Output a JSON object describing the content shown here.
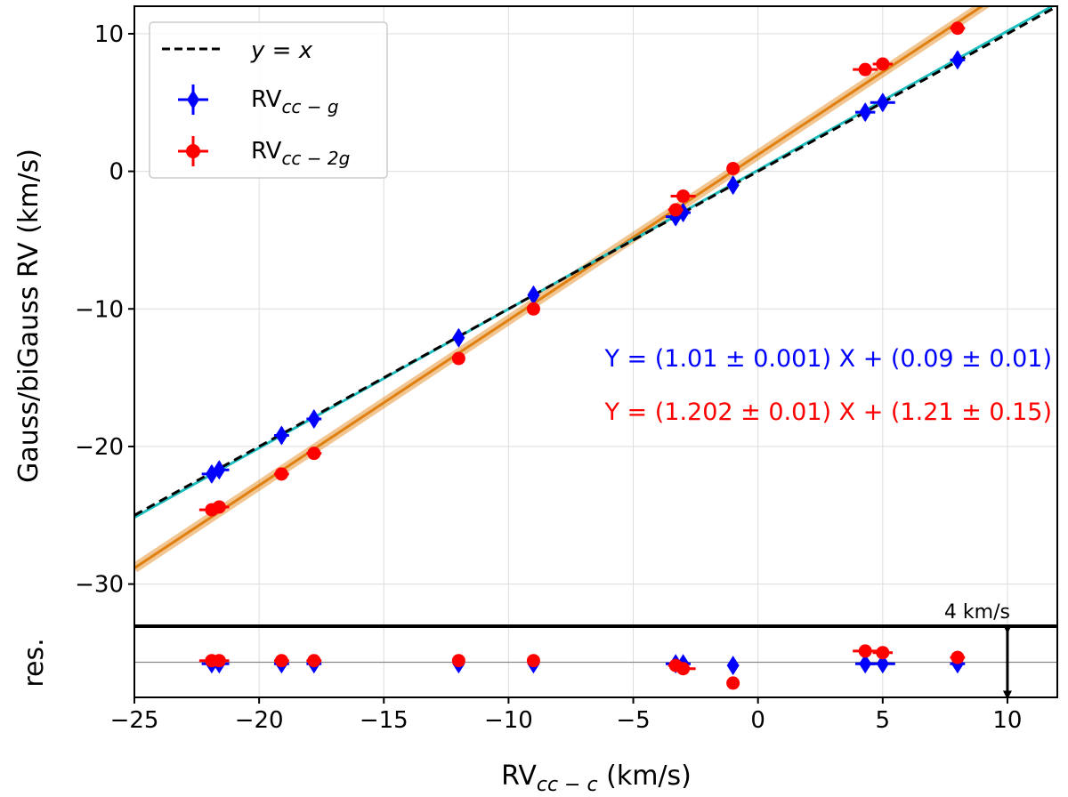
{
  "chart_data": {
    "type": "scatter",
    "xlabel_main": "RV",
    "xlabel_sub": "cc − c",
    "xlabel_unit": " (km/s)",
    "ylabel": "Gauss/biGauss RV (km/s)",
    "residual_ylabel": "res.",
    "xlim": [
      -25,
      12
    ],
    "ylim": [
      -33,
      12
    ],
    "xticks": [
      -25,
      -20,
      -15,
      -10,
      -5,
      0,
      5,
      10
    ],
    "yticks": [
      -30,
      -20,
      -10,
      0,
      10
    ],
    "xtick_labels": [
      "−25",
      "−20",
      "−15",
      "−10",
      "−5",
      "0",
      "5",
      "10"
    ],
    "ytick_labels": [
      "−30",
      "−20",
      "−10",
      "0",
      "10"
    ],
    "grid": true,
    "legend": {
      "placement": "top-left",
      "entries": [
        {
          "label": "y = x"
        },
        {
          "label_main": "RV",
          "label_sub": "cc − g"
        },
        {
          "label_main": "RV",
          "label_sub": "cc − 2g"
        }
      ]
    },
    "identity_line": {
      "color": "#000000",
      "style": "dashed"
    },
    "fits": [
      {
        "text": "Y = (1.01 ± 0.001) X + (0.09 ± 0.01)",
        "slope": 1.01,
        "intercept": 0.09,
        "color": "#0000ff",
        "line_color": "#1fbfbf"
      },
      {
        "text": "Y = (1.202 ± 0.01) X + (1.21 ± 0.15)",
        "slope": 1.202,
        "intercept": 1.21,
        "color": "#ff0000",
        "line_color": "#e08010"
      }
    ],
    "series": [
      {
        "name": "RVcc−g",
        "marker": "diamond",
        "color": "#0000ff",
        "x": [
          -21.9,
          -21.6,
          -19.1,
          -17.8,
          -12.0,
          -9.0,
          -3.3,
          -3.0,
          -1.0,
          4.3,
          5.0,
          8.0
        ],
        "y": [
          -22.0,
          -21.7,
          -19.2,
          -18.0,
          -12.1,
          -9.0,
          -3.3,
          -3.0,
          -1.0,
          4.3,
          5.0,
          8.1
        ],
        "xerr": [
          0.4,
          0.4,
          0.3,
          0.3,
          0.2,
          0.2,
          0.4,
          0.3,
          0.2,
          0.4,
          0.5,
          0.3
        ],
        "yerr": [
          0.6,
          0.6,
          0.6,
          0.6,
          0.6,
          0.6,
          0.6,
          0.6,
          0.6,
          0.6,
          0.6,
          0.6
        ],
        "residuals": [
          -0.1,
          -0.1,
          -0.1,
          -0.1,
          -0.1,
          -0.1,
          -0.1,
          -0.1,
          -0.2,
          -0.1,
          -0.1,
          -0.1
        ]
      },
      {
        "name": "RVcc−2g",
        "marker": "circle",
        "color": "#ff0000",
        "x": [
          -21.9,
          -21.6,
          -19.1,
          -17.8,
          -12.0,
          -9.0,
          -3.3,
          -3.0,
          -1.0,
          4.3,
          5.0,
          8.0
        ],
        "y": [
          -24.6,
          -24.4,
          -22.0,
          -20.5,
          -13.6,
          -10.0,
          -2.8,
          -1.8,
          0.2,
          7.4,
          7.8,
          10.4
        ],
        "xerr": [
          0.5,
          0.4,
          0.3,
          0.3,
          0.2,
          0.2,
          0.3,
          0.5,
          0.2,
          0.5,
          0.4,
          0.3
        ],
        "yerr": [
          0.2,
          0.2,
          0.2,
          0.2,
          0.2,
          0.2,
          0.2,
          0.2,
          0.2,
          0.2,
          0.2,
          0.2
        ],
        "residuals": [
          0.1,
          0.1,
          0.1,
          0.1,
          0.1,
          0.1,
          -0.2,
          -0.4,
          -1.3,
          0.7,
          0.6,
          0.3
        ]
      }
    ],
    "residual_scale": {
      "label": "4 km/s",
      "value": 4
    }
  }
}
